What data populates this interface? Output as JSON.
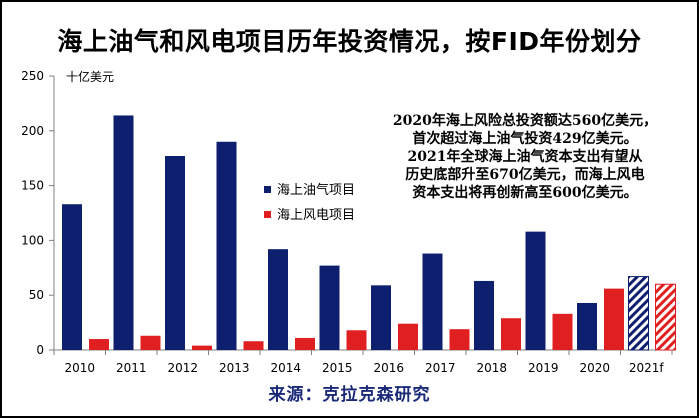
{
  "title": "海上油气和风电项目历年投资情况，按FID年份划分",
  "unit_label": "十亿美元",
  "annotation_lines": [
    "2020年海上风险总投资额达560亿美元，",
    "首次超过海上油气投资429亿美元。",
    "2021年全球海上油气资本支出有望从",
    "历史底部升至670亿美元，而海上风电",
    "资本支出将再创新高至600亿美元。"
  ],
  "source": "来源：克拉克森研究",
  "colors": {
    "oil_gas": "#0d1f6e",
    "wind": "#e02020",
    "axis": "#808080"
  },
  "chart_data": {
    "type": "bar",
    "categories": [
      "2010",
      "2011",
      "2012",
      "2013",
      "2014",
      "2015",
      "2016",
      "2017",
      "2018",
      "2019",
      "2020",
      "2021f"
    ],
    "series": [
      {
        "name": "海上油气项目",
        "values": [
          133,
          214,
          177,
          190,
          92,
          77,
          59,
          88,
          63,
          108,
          42.9,
          67
        ],
        "forecast_last": true
      },
      {
        "name": "海上风电项目",
        "values": [
          10,
          13,
          4,
          8,
          11,
          18,
          24,
          19,
          29,
          33,
          56,
          60
        ],
        "forecast_last": true
      }
    ],
    "yticks": [
      "0",
      "50",
      "100",
      "150",
      "200",
      "250"
    ],
    "ylim": [
      0,
      250
    ],
    "legend_position": "center-left",
    "grid": false
  }
}
